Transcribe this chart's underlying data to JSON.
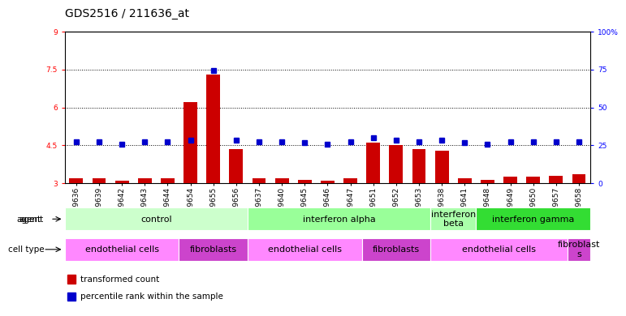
{
  "title": "GDS2516 / 211636_at",
  "samples": [
    "GSM89636",
    "GSM89639",
    "GSM89642",
    "GSM89643",
    "GSM89644",
    "GSM89654",
    "GSM89655",
    "GSM89656",
    "GSM89637",
    "GSM89640",
    "GSM89645",
    "GSM89646",
    "GSM89647",
    "GSM89651",
    "GSM89652",
    "GSM89653",
    "GSM89638",
    "GSM89641",
    "GSM89648",
    "GSM89649",
    "GSM89650",
    "GSM89657",
    "GSM89658"
  ],
  "bar_values": [
    3.2,
    3.2,
    3.1,
    3.2,
    3.2,
    6.2,
    7.3,
    4.35,
    3.2,
    3.2,
    3.15,
    3.1,
    3.2,
    4.6,
    4.5,
    4.35,
    4.3,
    3.2,
    3.15,
    3.25,
    3.25,
    3.3,
    3.35
  ],
  "dot_values": [
    4.65,
    4.65,
    4.55,
    4.65,
    4.65,
    4.7,
    7.45,
    4.7,
    4.65,
    4.65,
    4.6,
    4.55,
    4.65,
    4.8,
    4.7,
    4.65,
    4.7,
    4.6,
    4.55,
    4.65,
    4.65,
    4.65,
    4.65
  ],
  "ylim_left": [
    3.0,
    9.0
  ],
  "ylim_right": [
    0,
    100
  ],
  "yticks_left": [
    3.0,
    4.5,
    6.0,
    7.5,
    9.0
  ],
  "yticks_right": [
    0,
    25,
    50,
    75,
    100
  ],
  "ytick_labels_left": [
    "3",
    "4.5",
    "6",
    "7.5",
    "9"
  ],
  "ytick_labels_right": [
    "0",
    "25",
    "50",
    "75",
    "100%"
  ],
  "bar_color": "#cc0000",
  "dot_color": "#0000cc",
  "agent_groups": [
    {
      "label": "control",
      "start": 0,
      "end": 7,
      "color": "#ccffcc"
    },
    {
      "label": "interferon alpha",
      "start": 8,
      "end": 15,
      "color": "#99ff99"
    },
    {
      "label": "interferon\nbeta",
      "start": 16,
      "end": 17,
      "color": "#aaffaa"
    },
    {
      "label": "interferon gamma",
      "start": 18,
      "end": 22,
      "color": "#33dd33"
    }
  ],
  "cell_groups": [
    {
      "label": "endothelial cells",
      "start": 0,
      "end": 4,
      "color": "#ff88ff"
    },
    {
      "label": "fibroblasts",
      "start": 5,
      "end": 7,
      "color": "#cc44cc"
    },
    {
      "label": "endothelial cells",
      "start": 8,
      "end": 12,
      "color": "#ff88ff"
    },
    {
      "label": "fibroblasts",
      "start": 13,
      "end": 15,
      "color": "#cc44cc"
    },
    {
      "label": "endothelial cells",
      "start": 16,
      "end": 21,
      "color": "#ff88ff"
    },
    {
      "label": "fibroblast\ns",
      "start": 22,
      "end": 22,
      "color": "#cc44cc"
    }
  ],
  "legend_bar_label": "transformed count",
  "legend_dot_label": "percentile rank within the sample",
  "agent_label": "agent",
  "cell_type_label": "cell type",
  "title_fontsize": 10,
  "tick_fontsize": 6.5,
  "label_fontsize": 7.5,
  "group_fontsize": 8
}
